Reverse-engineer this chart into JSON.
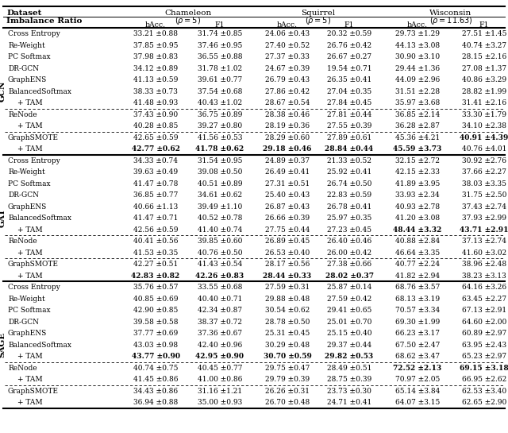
{
  "sections": [
    {
      "backbone": "GCN",
      "rows": [
        {
          "method": "Cross Entropy",
          "dashed_above": false,
          "bold_cols": [],
          "values": [
            "33.21 ±0.88",
            "31.74 ±0.85",
            "24.06 ±0.43",
            "20.32 ±0.59",
            "29.73 ±1.29",
            "27.51 ±1.45"
          ]
        },
        {
          "method": "Re-Weight",
          "dashed_above": false,
          "bold_cols": [],
          "values": [
            "37.85 ±0.95",
            "37.46 ±0.95",
            "27.40 ±0.52",
            "26.76 ±0.42",
            "44.13 ±3.08",
            "40.74 ±3.27"
          ]
        },
        {
          "method": "PC Softmax",
          "dashed_above": false,
          "bold_cols": [],
          "values": [
            "37.98 ±0.83",
            "36.55 ±0.88",
            "27.37 ±0.33",
            "26.67 ±0.27",
            "30.90 ±3.10",
            "28.15 ±2.16"
          ]
        },
        {
          "method": "DR-GCN",
          "dashed_above": false,
          "bold_cols": [],
          "values": [
            "34.12 ±0.89",
            "31.78 ±1.02",
            "24.67 ±0.39",
            "19.54 ±0.71",
            "29.44 ±1.36",
            "27.08 ±1.37"
          ]
        },
        {
          "method": "GraphENS",
          "dashed_above": false,
          "bold_cols": [],
          "values": [
            "41.13 ±0.59",
            "39.61 ±0.77",
            "26.79 ±0.43",
            "26.35 ±0.41",
            "44.09 ±2.96",
            "40.86 ±3.29"
          ]
        },
        {
          "method": "BalancedSoftmax",
          "dashed_above": false,
          "bold_cols": [],
          "values": [
            "38.33 ±0.73",
            "37.54 ±0.68",
            "27.86 ±0.42",
            "27.04 ±0.35",
            "31.51 ±2.28",
            "28.82 ±1.99"
          ]
        },
        {
          "method": "+ TAM",
          "dashed_above": false,
          "bold_cols": [],
          "values": [
            "41.48 ±0.93",
            "40.43 ±1.02",
            "28.67 ±0.54",
            "27.84 ±0.45",
            "35.97 ±3.68",
            "31.41 ±2.16"
          ]
        },
        {
          "method": "ReNode",
          "dashed_above": true,
          "bold_cols": [],
          "values": [
            "37.43 ±0.90",
            "36.75 ±0.89",
            "28.38 ±0.46",
            "27.81 ±0.44",
            "36.85 ±2.14",
            "33.30 ±1.79"
          ]
        },
        {
          "method": "+ TAM",
          "dashed_above": false,
          "bold_cols": [],
          "values": [
            "40.28 ±0.85",
            "39.27 ±0.80",
            "28.19 ±0.36",
            "27.55 ±0.39",
            "36.28 ±2.87",
            "34.10 ±2.38"
          ]
        },
        {
          "method": "GraphSMOTE",
          "dashed_above": true,
          "bold_cols": [
            5
          ],
          "values": [
            "42.65 ±0.59",
            "41.56 ±0.53",
            "28.29 ±0.60",
            "27.89 ±0.61",
            "45.36 ±4.21",
            "40.91 ±4.39"
          ]
        },
        {
          "method": "+ TAM",
          "dashed_above": false,
          "bold_cols": [
            0,
            1,
            2,
            3,
            4
          ],
          "values": [
            "42.77 ±0.62",
            "41.78 ±0.62",
            "29.18 ±0.46",
            "28.84 ±0.44",
            "45.59 ±3.73",
            "40.76 ±4.01"
          ]
        }
      ]
    },
    {
      "backbone": "GAT",
      "rows": [
        {
          "method": "Cross Entropy",
          "dashed_above": false,
          "bold_cols": [],
          "values": [
            "34.33 ±0.74",
            "31.54 ±0.95",
            "24.89 ±0.37",
            "21.33 ±0.52",
            "32.15 ±2.72",
            "30.92 ±2.76"
          ]
        },
        {
          "method": "Re-Weight",
          "dashed_above": false,
          "bold_cols": [],
          "values": [
            "39.63 ±0.49",
            "39.08 ±0.50",
            "26.49 ±0.41",
            "25.92 ±0.41",
            "42.15 ±2.33",
            "37.66 ±2.27"
          ]
        },
        {
          "method": "PC Softmax",
          "dashed_above": false,
          "bold_cols": [],
          "values": [
            "41.47 ±0.78",
            "40.51 ±0.89",
            "27.31 ±0.51",
            "26.74 ±0.50",
            "41.89 ±3.95",
            "38.03 ±3.35"
          ]
        },
        {
          "method": "DR-GCN",
          "dashed_above": false,
          "bold_cols": [],
          "values": [
            "36.85 ±0.77",
            "34.61 ±0.62",
            "25.40 ±0.43",
            "22.83 ±0.59",
            "33.93 ±2.34",
            "31.75 ±2.50"
          ]
        },
        {
          "method": "GraphENS",
          "dashed_above": false,
          "bold_cols": [],
          "values": [
            "40.66 ±1.13",
            "39.49 ±1.10",
            "26.87 ±0.43",
            "26.78 ±0.41",
            "40.93 ±2.78",
            "37.43 ±2.74"
          ]
        },
        {
          "method": "BalancedSoftmax",
          "dashed_above": false,
          "bold_cols": [],
          "values": [
            "41.47 ±0.71",
            "40.52 ±0.78",
            "26.66 ±0.39",
            "25.97 ±0.35",
            "41.20 ±3.08",
            "37.93 ±2.99"
          ]
        },
        {
          "method": "+ TAM",
          "dashed_above": false,
          "bold_cols": [
            4,
            5
          ],
          "values": [
            "42.56 ±0.59",
            "41.40 ±0.74",
            "27.75 ±0.44",
            "27.23 ±0.45",
            "48.44 ±3.32",
            "43.71 ±2.91"
          ]
        },
        {
          "method": "ReNode",
          "dashed_above": true,
          "bold_cols": [],
          "values": [
            "40.41 ±0.56",
            "39.85 ±0.60",
            "26.89 ±0.45",
            "26.40 ±0.46",
            "40.88 ±2.84",
            "37.13 ±2.74"
          ]
        },
        {
          "method": "+ TAM",
          "dashed_above": false,
          "bold_cols": [],
          "values": [
            "41.53 ±0.35",
            "40.76 ±0.50",
            "26.53 ±0.40",
            "26.00 ±0.42",
            "46.64 ±3.35",
            "41.60 ±3.02"
          ]
        },
        {
          "method": "GraphSMOTE",
          "dashed_above": true,
          "bold_cols": [],
          "values": [
            "42.27 ±0.51",
            "41.43 ±0.54",
            "28.17 ±0.56",
            "27.38 ±0.66",
            "40.77 ±2.24",
            "38.96 ±2.48"
          ]
        },
        {
          "method": "+ TAM",
          "dashed_above": false,
          "bold_cols": [
            0,
            1,
            2,
            3
          ],
          "values": [
            "42.83 ±0.82",
            "42.26 ±0.83",
            "28.44 ±0.33",
            "28.02 ±0.37",
            "41.82 ±2.94",
            "38.23 ±3.13"
          ]
        }
      ]
    },
    {
      "backbone": "SAGE",
      "rows": [
        {
          "method": "Cross Entropy",
          "dashed_above": false,
          "bold_cols": [],
          "values": [
            "35.76 ±0.57",
            "33.55 ±0.68",
            "27.59 ±0.31",
            "25.87 ±0.14",
            "68.76 ±3.57",
            "64.16 ±3.26"
          ]
        },
        {
          "method": "Re-Weight",
          "dashed_above": false,
          "bold_cols": [],
          "values": [
            "40.85 ±0.69",
            "40.40 ±0.71",
            "29.88 ±0.48",
            "27.59 ±0.42",
            "68.13 ±3.19",
            "63.45 ±2.27"
          ]
        },
        {
          "method": "PC Softmax",
          "dashed_above": false,
          "bold_cols": [],
          "values": [
            "42.90 ±0.85",
            "42.34 ±0.87",
            "30.54 ±0.62",
            "29.41 ±0.65",
            "70.57 ±3.34",
            "67.13 ±2.91"
          ]
        },
        {
          "method": "DR-GCN",
          "dashed_above": false,
          "bold_cols": [],
          "values": [
            "39.58 ±0.58",
            "38.37 ±0.72",
            "28.78 ±0.50",
            "25.01 ±0.70",
            "69.30 ±1.99",
            "64.60 ±2.00"
          ]
        },
        {
          "method": "GraphENS",
          "dashed_above": false,
          "bold_cols": [],
          "values": [
            "37.77 ±0.69",
            "37.36 ±0.67",
            "25.31 ±0.45",
            "25.15 ±0.40",
            "66.23 ±3.17",
            "60.89 ±2.97"
          ]
        },
        {
          "method": "BalancedSoftmax",
          "dashed_above": false,
          "bold_cols": [],
          "values": [
            "43.03 ±0.98",
            "42.40 ±0.96",
            "30.29 ±0.48",
            "29.37 ±0.44",
            "67.50 ±2.47",
            "63.95 ±2.43"
          ]
        },
        {
          "method": "+ TAM",
          "dashed_above": false,
          "bold_cols": [
            0,
            1,
            2,
            3
          ],
          "values": [
            "43.77 ±0.90",
            "42.95 ±0.90",
            "30.70 ±0.59",
            "29.82 ±0.53",
            "68.62 ±3.47",
            "65.23 ±2.97"
          ]
        },
        {
          "method": "ReNode",
          "dashed_above": true,
          "bold_cols": [
            4,
            5
          ],
          "values": [
            "40.74 ±0.75",
            "40.45 ±0.77",
            "29.75 ±0.47",
            "28.49 ±0.51",
            "72.52 ±2.13",
            "69.15 ±3.18"
          ]
        },
        {
          "method": "+ TAM",
          "dashed_above": false,
          "bold_cols": [],
          "values": [
            "41.45 ±0.86",
            "41.00 ±0.86",
            "29.79 ±0.39",
            "28.75 ±0.39",
            "70.97 ±2.05",
            "66.95 ±2.62"
          ]
        },
        {
          "method": "GraphSMOTE",
          "dashed_above": true,
          "bold_cols": [],
          "values": [
            "34.43 ±0.86",
            "31.16 ±1.21",
            "26.26 ±0.31",
            "23.73 ±0.30",
            "65.14 ±3.84",
            "62.53 ±3.40"
          ]
        },
        {
          "method": "+ TAM",
          "dashed_above": false,
          "bold_cols": [],
          "values": [
            "36.94 ±0.88",
            "35.00 ±0.93",
            "26.70 ±0.48",
            "24.71 ±0.41",
            "64.07 ±3.15",
            "62.65 ±2.90"
          ]
        }
      ]
    }
  ]
}
